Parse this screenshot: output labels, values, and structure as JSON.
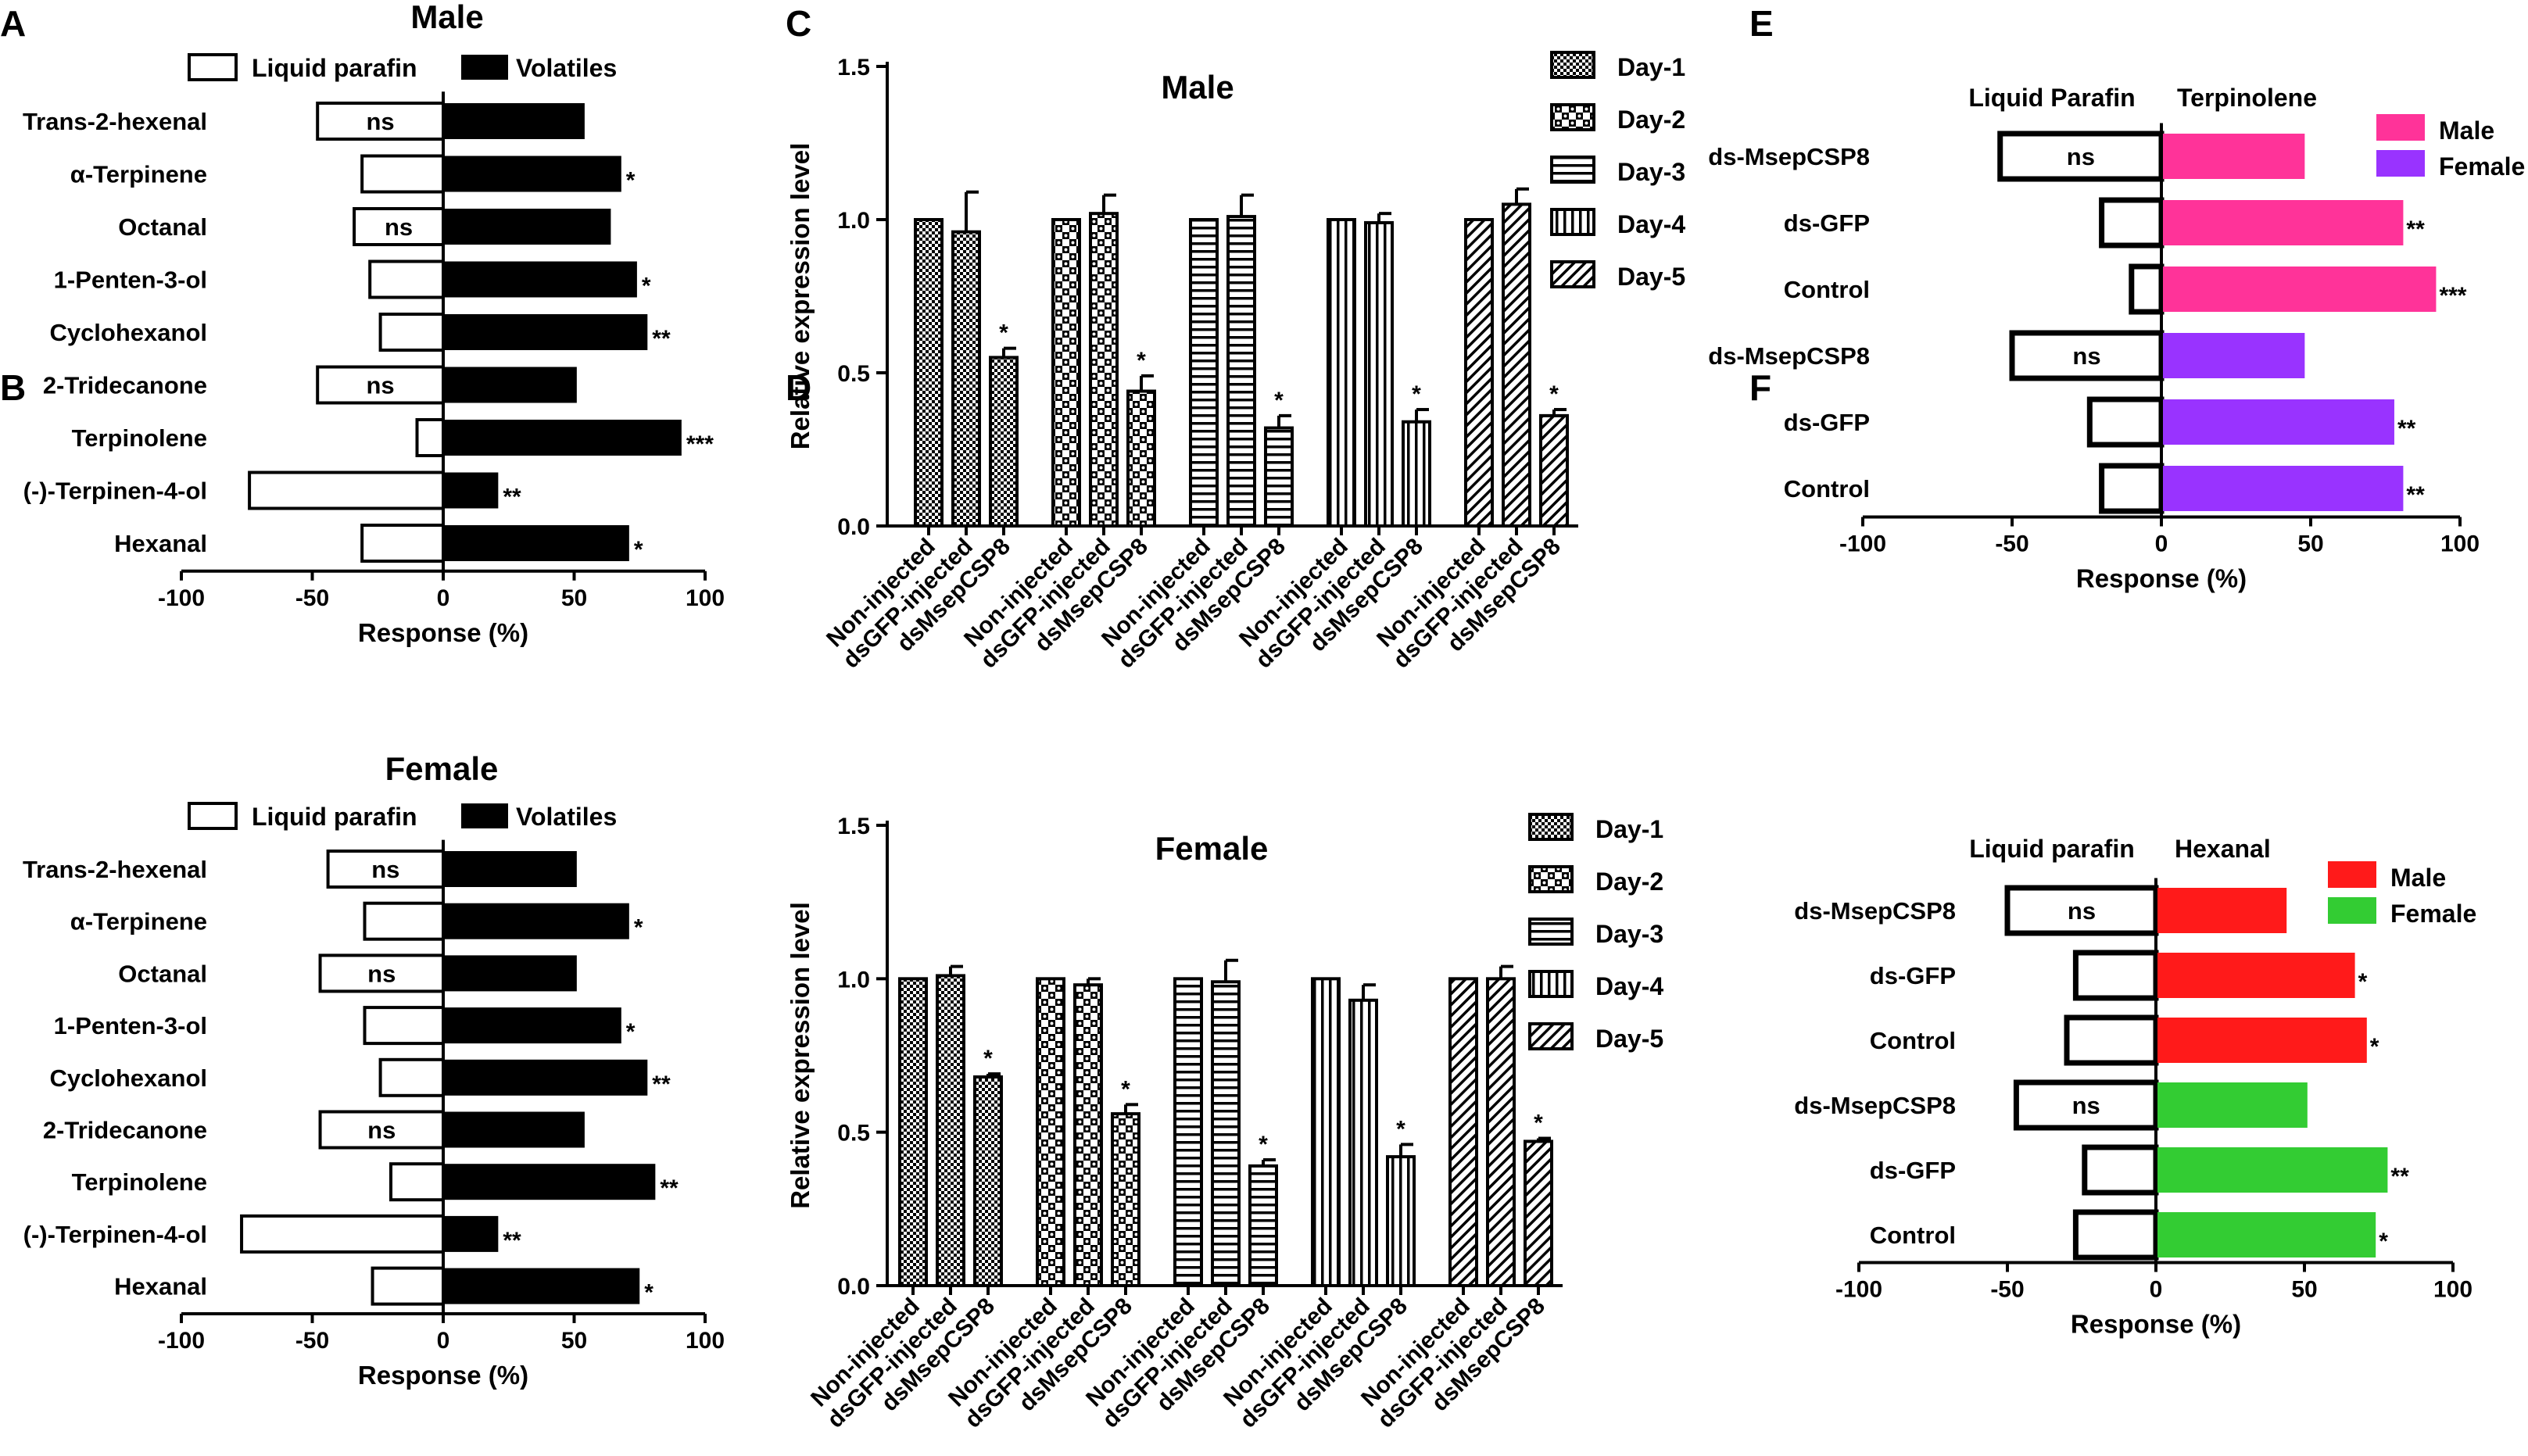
{
  "figure": {
    "panel_letters": [
      "A",
      "B",
      "C",
      "D",
      "E",
      "F"
    ]
  },
  "colors": {
    "black": "#000000",
    "white": "#ffffff",
    "pink": "#ff3399",
    "purple": "#9933ff",
    "red": "#ff1a1a",
    "green": "#33cc33"
  },
  "chart_data": [
    {
      "id": "A",
      "type": "bar",
      "orientation": "horizontal",
      "title": "Male",
      "categories": [
        "Trans-2-hexenal",
        "α-Terpinene",
        "Octanal",
        "1-Penten-3-ol",
        "Cyclohexanol",
        "2-Tridecanone",
        "Terpinolene",
        "(-)-Terpinen-4-ol",
        "Hexanal"
      ],
      "series": [
        {
          "name": "Liquid parafin",
          "values": [
            -48,
            -31,
            -34,
            -28,
            -24,
            -48,
            -10,
            -74,
            -31
          ]
        },
        {
          "name": "Volatiles",
          "values": [
            54,
            68,
            64,
            74,
            78,
            51,
            91,
            21,
            71
          ]
        }
      ],
      "bar_labels": [
        "ns",
        "",
        "ns",
        "",
        "",
        "ns",
        "",
        "",
        ""
      ],
      "significance": [
        "",
        "*",
        "",
        "*",
        "**",
        "",
        "***",
        "**",
        "*"
      ],
      "xlabel": "Response (%)",
      "xlim": [
        -100,
        100
      ],
      "xticks": [
        -100,
        -50,
        0,
        50,
        100
      ]
    },
    {
      "id": "B",
      "type": "bar",
      "orientation": "horizontal",
      "title": "Female",
      "categories": [
        "Trans-2-hexenal",
        "α-Terpinene",
        "Octanal",
        "1-Penten-3-ol",
        "Cyclohexanol",
        "2-Tridecanone",
        "Terpinolene",
        "(-)-Terpinen-4-ol",
        "Hexanal"
      ],
      "series": [
        {
          "name": "Liquid parafin",
          "values": [
            -44,
            -30,
            -47,
            -30,
            -24,
            -47,
            -20,
            -77,
            -27
          ]
        },
        {
          "name": "Volatiles",
          "values": [
            51,
            71,
            51,
            68,
            78,
            54,
            81,
            21,
            75
          ]
        }
      ],
      "bar_labels": [
        "ns",
        "",
        "ns",
        "",
        "",
        "ns",
        "",
        "",
        ""
      ],
      "significance": [
        "",
        "*",
        "",
        "*",
        "**",
        "",
        "**",
        "**",
        "*"
      ],
      "xlabel": "Response (%)",
      "xlim": [
        -100,
        100
      ],
      "xticks": [
        -100,
        -50,
        0,
        50,
        100
      ]
    },
    {
      "id": "C",
      "type": "bar",
      "title": "Male",
      "ylabel": "Relative expression level",
      "ylim": [
        0,
        1.5
      ],
      "yticks": [
        "0.0",
        "0.5",
        "1.0",
        "1.5"
      ],
      "days": [
        "Day-1",
        "Day-2",
        "Day-3",
        "Day-4",
        "Day-5"
      ],
      "groups": [
        "Non-injected",
        "dsGFP-injected",
        "dsMsepCSP8"
      ],
      "values": [
        [
          1.0,
          0.96,
          0.55
        ],
        [
          1.0,
          1.02,
          0.44
        ],
        [
          1.0,
          1.01,
          0.32
        ],
        [
          1.0,
          0.99,
          0.34
        ],
        [
          1.0,
          1.05,
          0.36
        ]
      ],
      "errors": [
        [
          0,
          0.13,
          0.03
        ],
        [
          0,
          0.06,
          0.05
        ],
        [
          0,
          0.07,
          0.04
        ],
        [
          0,
          0.03,
          0.04
        ],
        [
          0,
          0.05,
          0.02
        ]
      ],
      "significance": [
        "*",
        "*",
        "*",
        "*",
        "*"
      ]
    },
    {
      "id": "D",
      "type": "bar",
      "title": "Female",
      "ylabel": "Relative expression level",
      "ylim": [
        0,
        1.5
      ],
      "yticks": [
        "0.0",
        "0.5",
        "1.0",
        "1.5"
      ],
      "days": [
        "Day-1",
        "Day-2",
        "Day-3",
        "Day-4",
        "Day-5"
      ],
      "groups": [
        "Non-injected",
        "dsGFP-injected",
        "dsMsepCSP8"
      ],
      "values": [
        [
          1.0,
          1.01,
          0.68
        ],
        [
          1.0,
          0.98,
          0.56
        ],
        [
          1.0,
          0.99,
          0.39
        ],
        [
          1.0,
          0.93,
          0.42
        ],
        [
          1.0,
          1.0,
          0.47
        ]
      ],
      "errors": [
        [
          0,
          0.03,
          0.01
        ],
        [
          0,
          0.02,
          0.03
        ],
        [
          0,
          0.07,
          0.02
        ],
        [
          0,
          0.05,
          0.04
        ],
        [
          0,
          0.04,
          0.01
        ]
      ],
      "significance": [
        "*",
        "*",
        "*",
        "*",
        "*"
      ]
    },
    {
      "id": "E",
      "type": "bar",
      "orientation": "horizontal",
      "left_header": "Liquid Parafin",
      "right_header": "Terpinolene",
      "categories": [
        "ds-MsepCSP8",
        "ds-GFP",
        "Control",
        "ds-MsepCSP8",
        "ds-GFP",
        "Control"
      ],
      "sex": [
        "Male",
        "Male",
        "Male",
        "Female",
        "Female",
        "Female"
      ],
      "left_values": [
        -54,
        -20,
        -10,
        -50,
        -24,
        -20
      ],
      "right_values": [
        48,
        81,
        92,
        48,
        78,
        81
      ],
      "bar_labels": [
        "ns",
        "",
        "",
        "ns",
        "",
        ""
      ],
      "significance": [
        "",
        "**",
        "***",
        "",
        "**",
        "**"
      ],
      "legend": [
        "Male",
        "Female"
      ],
      "xlabel": "Response (%)",
      "xlim": [
        -100,
        100
      ],
      "xticks": [
        -100,
        -50,
        0,
        50,
        100
      ]
    },
    {
      "id": "F",
      "type": "bar",
      "orientation": "horizontal",
      "left_header": "Liquid parafin",
      "right_header": "Hexanal",
      "categories": [
        "ds-MsepCSP8",
        "ds-GFP",
        "Control",
        "ds-MsepCSP8",
        "ds-GFP",
        "Control"
      ],
      "sex": [
        "Male",
        "Male",
        "Male",
        "Female",
        "Female",
        "Female"
      ],
      "left_values": [
        -50,
        -27,
        -30,
        -47,
        -24,
        -27
      ],
      "right_values": [
        44,
        67,
        71,
        51,
        78,
        74
      ],
      "bar_labels": [
        "ns",
        "",
        "",
        "ns",
        "",
        ""
      ],
      "significance": [
        "",
        "*",
        "*",
        "",
        "**",
        "*"
      ],
      "legend": [
        "Male",
        "Female"
      ],
      "xlabel": "Response (%)",
      "xlim": [
        -100,
        100
      ],
      "xticks": [
        -100,
        -50,
        0,
        50,
        100
      ]
    }
  ]
}
